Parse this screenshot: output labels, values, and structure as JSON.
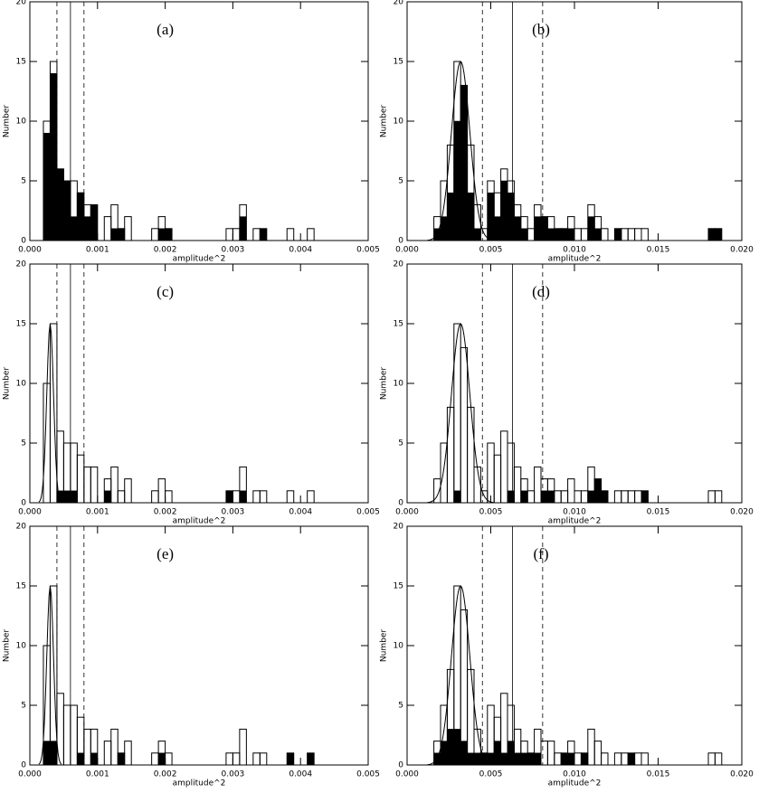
{
  "chart_data": [
    {
      "type": "histogram",
      "annotation": "(a)",
      "xlabel": "amplitude^2",
      "ylabel": "Number",
      "bins": [
        0.0002,
        0.0003,
        0.0004,
        0.0005,
        0.0006,
        0.0007,
        0.0008,
        0.0009,
        0.001,
        0.0011,
        0.0012,
        0.0013,
        0.0014,
        0.0015,
        0.0016,
        0.0017,
        0.0018,
        0.0019,
        0.002,
        0.0021,
        0.0022,
        0.0023,
        0.0024,
        0.0025,
        0.0026,
        0.0027,
        0.0028,
        0.0029,
        0.003,
        0.0031,
        0.0032,
        0.0033,
        0.0034,
        0.0035,
        0.0036,
        0.0037,
        0.0038,
        0.0039,
        0.004,
        0.0041,
        0.0042
      ],
      "series": [
        {
          "style": "outline",
          "color": "#000000",
          "values": [
            10,
            15,
            6,
            5,
            5,
            4,
            3,
            3,
            0,
            2,
            3,
            1,
            2,
            0,
            0,
            0,
            1,
            2,
            1,
            0,
            0,
            0,
            0,
            0,
            0,
            0,
            0,
            1,
            1,
            3,
            0,
            1,
            1,
            0,
            0,
            0,
            1,
            0,
            0,
            1
          ]
        },
        {
          "style": "filled",
          "color": "#000000",
          "values": [
            9,
            14,
            6,
            5,
            2,
            4,
            2,
            3,
            0,
            0,
            1,
            1,
            0,
            0,
            0,
            0,
            0,
            1,
            1,
            0,
            0,
            0,
            0,
            0,
            0,
            0,
            0,
            0,
            0,
            2,
            0,
            0,
            1,
            0,
            0,
            0,
            0,
            0,
            0,
            0
          ]
        }
      ],
      "vlines": [
        {
          "x": 0.0006,
          "style": "solid"
        },
        {
          "x": 0.0004,
          "style": "dashed"
        },
        {
          "x": 0.0008,
          "style": "dashed"
        }
      ],
      "xlim": [
        0,
        0.005
      ],
      "ylim": [
        0,
        20
      ],
      "xticks": [
        {
          "value": 0,
          "label": "0.000"
        },
        {
          "value": 0.001,
          "label": "0.001"
        },
        {
          "value": 0.002,
          "label": "0.002"
        },
        {
          "value": 0.003,
          "label": "0.003"
        },
        {
          "value": 0.004,
          "label": "0.004"
        },
        {
          "value": 0.005,
          "label": "0.005"
        }
      ],
      "yticks": [
        0,
        5,
        10,
        15,
        20
      ]
    },
    {
      "type": "histogram",
      "annotation": "(b)",
      "xlabel": "amplitude^2",
      "ylabel": "Number",
      "bins": [
        0.0016,
        0.002,
        0.0024,
        0.0028,
        0.0032,
        0.0036,
        0.004,
        0.0044,
        0.0048,
        0.0052,
        0.0056,
        0.006,
        0.0064,
        0.0068,
        0.0072,
        0.0076,
        0.008,
        0.0084,
        0.0088,
        0.0092,
        0.0096,
        0.01,
        0.0104,
        0.0108,
        0.0112,
        0.0116,
        0.012,
        0.0124,
        0.0128,
        0.0132,
        0.0136,
        0.014,
        0.0144,
        0.0148,
        0.0152,
        0.0156,
        0.016,
        0.0164,
        0.0168,
        0.0172,
        0.0176,
        0.018,
        0.0184,
        0.0188
      ],
      "series": [
        {
          "style": "outline",
          "color": "#000000",
          "values": [
            2,
            5,
            8,
            15,
            13,
            8,
            3,
            1,
            5,
            4,
            6,
            5,
            3,
            2,
            1,
            3,
            2,
            2,
            1,
            1,
            2,
            1,
            1,
            3,
            2,
            1,
            0,
            1,
            1,
            1,
            1,
            1,
            0,
            0,
            0,
            0,
            0,
            0,
            0,
            0,
            0,
            1,
            1
          ]
        },
        {
          "style": "filled",
          "color": "#000000",
          "values": [
            1,
            2,
            4,
            10,
            13,
            4,
            1,
            0,
            4,
            2,
            5,
            4,
            2,
            1,
            0,
            2,
            2,
            1,
            1,
            1,
            1,
            0,
            0,
            2,
            1,
            0,
            0,
            1,
            0,
            0,
            0,
            0,
            0,
            0,
            0,
            0,
            0,
            0,
            0,
            0,
            0,
            1,
            1
          ]
        }
      ],
      "fit": {
        "center": 0.0032,
        "width": 0.00055,
        "height": 15
      },
      "vlines": [
        {
          "x": 0.0063,
          "style": "solid"
        },
        {
          "x": 0.0045,
          "style": "dashed"
        },
        {
          "x": 0.0081,
          "style": "dashed"
        }
      ],
      "xlim": [
        0,
        0.02
      ],
      "ylim": [
        0,
        20
      ],
      "xticks": [
        {
          "value": 0,
          "label": "0.000"
        },
        {
          "value": 0.005,
          "label": "0.005"
        },
        {
          "value": 0.01,
          "label": "0.010"
        },
        {
          "value": 0.015,
          "label": "0.015"
        },
        {
          "value": 0.02,
          "label": "0.020"
        }
      ],
      "yticks": [
        0,
        5,
        10,
        15,
        20
      ]
    },
    {
      "type": "histogram",
      "annotation": "(c)",
      "xlabel": "amplitude^2",
      "ylabel": "Number",
      "bins": [
        0.0002,
        0.0003,
        0.0004,
        0.0005,
        0.0006,
        0.0007,
        0.0008,
        0.0009,
        0.001,
        0.0011,
        0.0012,
        0.0013,
        0.0014,
        0.0015,
        0.0016,
        0.0017,
        0.0018,
        0.0019,
        0.002,
        0.0021,
        0.0022,
        0.0023,
        0.0024,
        0.0025,
        0.0026,
        0.0027,
        0.0028,
        0.0029,
        0.003,
        0.0031,
        0.0032,
        0.0033,
        0.0034,
        0.0035,
        0.0036,
        0.0037,
        0.0038,
        0.0039,
        0.004,
        0.0041,
        0.0042
      ],
      "series": [
        {
          "style": "outline",
          "color": "#000000",
          "values": [
            10,
            15,
            6,
            5,
            5,
            4,
            3,
            3,
            0,
            2,
            3,
            1,
            2,
            0,
            0,
            0,
            1,
            2,
            1,
            0,
            0,
            0,
            0,
            0,
            0,
            0,
            0,
            1,
            1,
            3,
            0,
            1,
            1,
            0,
            0,
            0,
            1,
            0,
            0,
            1
          ]
        },
        {
          "style": "filled",
          "color": "#000000",
          "values": [
            0,
            0,
            1,
            1,
            1,
            0,
            0,
            0,
            0,
            1,
            0,
            0,
            0,
            0,
            0,
            0,
            0,
            0,
            0,
            0,
            0,
            0,
            0,
            0,
            0,
            0,
            0,
            1,
            0,
            1,
            0,
            0,
            0,
            0,
            0,
            0,
            0,
            0,
            0,
            0
          ]
        }
      ],
      "fit": {
        "center": 0.0003,
        "width": 5e-05,
        "height": 15
      },
      "vlines": [
        {
          "x": 0.0006,
          "style": "solid"
        },
        {
          "x": 0.0004,
          "style": "dashed"
        },
        {
          "x": 0.0008,
          "style": "dashed"
        }
      ],
      "xlim": [
        0,
        0.005
      ],
      "ylim": [
        0,
        20
      ],
      "xticks": [
        {
          "value": 0,
          "label": "0.000"
        },
        {
          "value": 0.001,
          "label": "0.001"
        },
        {
          "value": 0.002,
          "label": "0.002"
        },
        {
          "value": 0.003,
          "label": "0.003"
        },
        {
          "value": 0.004,
          "label": "0.004"
        },
        {
          "value": 0.005,
          "label": "0.005"
        }
      ],
      "yticks": [
        0,
        5,
        10,
        15,
        20
      ]
    },
    {
      "type": "histogram",
      "annotation": "(d)",
      "xlabel": "amplitude^2",
      "ylabel": "Number",
      "bins": [
        0.0016,
        0.002,
        0.0024,
        0.0028,
        0.0032,
        0.0036,
        0.004,
        0.0044,
        0.0048,
        0.0052,
        0.0056,
        0.006,
        0.0064,
        0.0068,
        0.0072,
        0.0076,
        0.008,
        0.0084,
        0.0088,
        0.0092,
        0.0096,
        0.01,
        0.0104,
        0.0108,
        0.0112,
        0.0116,
        0.012,
        0.0124,
        0.0128,
        0.0132,
        0.0136,
        0.014,
        0.0144,
        0.0148,
        0.0152,
        0.0156,
        0.016,
        0.0164,
        0.0168,
        0.0172,
        0.0176,
        0.018,
        0.0184,
        0.0188
      ],
      "series": [
        {
          "style": "outline",
          "color": "#000000",
          "values": [
            2,
            5,
            8,
            15,
            13,
            8,
            3,
            1,
            5,
            4,
            6,
            5,
            3,
            2,
            1,
            3,
            2,
            2,
            1,
            1,
            2,
            1,
            1,
            3,
            2,
            1,
            0,
            1,
            1,
            1,
            1,
            1,
            0,
            0,
            0,
            0,
            0,
            0,
            0,
            0,
            0,
            1,
            1
          ]
        },
        {
          "style": "filled",
          "color": "#000000",
          "values": [
            0,
            0,
            0,
            1,
            0,
            0,
            0,
            0,
            0,
            0,
            0,
            1,
            0,
            1,
            0,
            0,
            1,
            1,
            0,
            0,
            0,
            0,
            0,
            1,
            2,
            1,
            0,
            0,
            0,
            0,
            0,
            1,
            0,
            0,
            0,
            0,
            0,
            0,
            0,
            0,
            0,
            0,
            0
          ]
        }
      ],
      "fit": {
        "center": 0.0032,
        "width": 0.00055,
        "height": 15
      },
      "vlines": [
        {
          "x": 0.0063,
          "style": "solid"
        },
        {
          "x": 0.0045,
          "style": "dashed"
        },
        {
          "x": 0.0081,
          "style": "dashed"
        }
      ],
      "xlim": [
        0,
        0.02
      ],
      "ylim": [
        0,
        20
      ],
      "xticks": [
        {
          "value": 0,
          "label": "0.000"
        },
        {
          "value": 0.005,
          "label": "0.005"
        },
        {
          "value": 0.01,
          "label": "0.010"
        },
        {
          "value": 0.015,
          "label": "0.015"
        },
        {
          "value": 0.02,
          "label": "0.020"
        }
      ],
      "yticks": [
        0,
        5,
        10,
        15,
        20
      ]
    },
    {
      "type": "histogram",
      "annotation": "(e)",
      "xlabel": "amplitude^2",
      "ylabel": "Number",
      "bins": [
        0.0002,
        0.0003,
        0.0004,
        0.0005,
        0.0006,
        0.0007,
        0.0008,
        0.0009,
        0.001,
        0.0011,
        0.0012,
        0.0013,
        0.0014,
        0.0015,
        0.0016,
        0.0017,
        0.0018,
        0.0019,
        0.002,
        0.0021,
        0.0022,
        0.0023,
        0.0024,
        0.0025,
        0.0026,
        0.0027,
        0.0028,
        0.0029,
        0.003,
        0.0031,
        0.0032,
        0.0033,
        0.0034,
        0.0035,
        0.0036,
        0.0037,
        0.0038,
        0.0039,
        0.004,
        0.0041,
        0.0042
      ],
      "series": [
        {
          "style": "outline",
          "color": "#000000",
          "values": [
            10,
            15,
            6,
            5,
            5,
            4,
            3,
            3,
            0,
            2,
            3,
            1,
            2,
            0,
            0,
            0,
            1,
            2,
            1,
            0,
            0,
            0,
            0,
            0,
            0,
            0,
            0,
            1,
            1,
            3,
            0,
            1,
            1,
            0,
            0,
            0,
            1,
            0,
            0,
            1
          ]
        },
        {
          "style": "filled",
          "color": "#000000",
          "values": [
            2,
            2,
            0,
            0,
            0,
            1,
            0,
            1,
            0,
            0,
            0,
            1,
            0,
            0,
            0,
            0,
            0,
            1,
            0,
            0,
            0,
            0,
            0,
            0,
            0,
            0,
            0,
            0,
            0,
            0,
            0,
            0,
            0,
            0,
            0,
            0,
            1,
            0,
            0,
            1
          ]
        }
      ],
      "fit": {
        "center": 0.0003,
        "width": 5e-05,
        "height": 15
      },
      "vlines": [
        {
          "x": 0.0006,
          "style": "solid"
        },
        {
          "x": 0.0004,
          "style": "dashed"
        },
        {
          "x": 0.0008,
          "style": "dashed"
        }
      ],
      "xlim": [
        0,
        0.005
      ],
      "ylim": [
        0,
        20
      ],
      "xticks": [
        {
          "value": 0,
          "label": "0.000"
        },
        {
          "value": 0.001,
          "label": "0.001"
        },
        {
          "value": 0.002,
          "label": "0.002"
        },
        {
          "value": 0.003,
          "label": "0.003"
        },
        {
          "value": 0.004,
          "label": "0.004"
        },
        {
          "value": 0.005,
          "label": "0.005"
        }
      ],
      "yticks": [
        0,
        5,
        10,
        15,
        20
      ]
    },
    {
      "type": "histogram",
      "annotation": "(f)",
      "xlabel": "amplitude^2",
      "ylabel": "Number",
      "bins": [
        0.0016,
        0.002,
        0.0024,
        0.0028,
        0.0032,
        0.0036,
        0.004,
        0.0044,
        0.0048,
        0.0052,
        0.0056,
        0.006,
        0.0064,
        0.0068,
        0.0072,
        0.0076,
        0.008,
        0.0084,
        0.0088,
        0.0092,
        0.0096,
        0.01,
        0.0104,
        0.0108,
        0.0112,
        0.0116,
        0.012,
        0.0124,
        0.0128,
        0.0132,
        0.0136,
        0.014,
        0.0144,
        0.0148,
        0.0152,
        0.0156,
        0.016,
        0.0164,
        0.0168,
        0.0172,
        0.0176,
        0.018,
        0.0184,
        0.0188
      ],
      "series": [
        {
          "style": "outline",
          "color": "#000000",
          "values": [
            2,
            5,
            8,
            15,
            13,
            8,
            3,
            1,
            5,
            4,
            6,
            5,
            3,
            2,
            1,
            3,
            2,
            2,
            1,
            1,
            2,
            1,
            1,
            3,
            2,
            1,
            0,
            1,
            1,
            1,
            1,
            1,
            0,
            0,
            0,
            0,
            0,
            0,
            0,
            0,
            0,
            1,
            1
          ]
        },
        {
          "style": "filled",
          "color": "#000000",
          "values": [
            1,
            2,
            3,
            3,
            2,
            1,
            1,
            1,
            1,
            2,
            1,
            2,
            1,
            1,
            1,
            1,
            0,
            0,
            0,
            1,
            1,
            0,
            1,
            0,
            0,
            0,
            0,
            0,
            0,
            1,
            0,
            0,
            0,
            0,
            0,
            0,
            0,
            0,
            0,
            0,
            0,
            0,
            0
          ]
        }
      ],
      "fit": {
        "center": 0.0032,
        "width": 0.00055,
        "height": 15
      },
      "vlines": [
        {
          "x": 0.0063,
          "style": "solid"
        },
        {
          "x": 0.0045,
          "style": "dashed"
        },
        {
          "x": 0.0081,
          "style": "dashed"
        }
      ],
      "xlim": [
        0,
        0.02
      ],
      "ylim": [
        0,
        20
      ],
      "xticks": [
        {
          "value": 0,
          "label": "0.000"
        },
        {
          "value": 0.005,
          "label": "0.005"
        },
        {
          "value": 0.01,
          "label": "0.010"
        },
        {
          "value": 0.015,
          "label": "0.015"
        },
        {
          "value": 0.02,
          "label": "0.020"
        }
      ],
      "yticks": [
        0,
        5,
        10,
        15,
        20
      ]
    }
  ]
}
